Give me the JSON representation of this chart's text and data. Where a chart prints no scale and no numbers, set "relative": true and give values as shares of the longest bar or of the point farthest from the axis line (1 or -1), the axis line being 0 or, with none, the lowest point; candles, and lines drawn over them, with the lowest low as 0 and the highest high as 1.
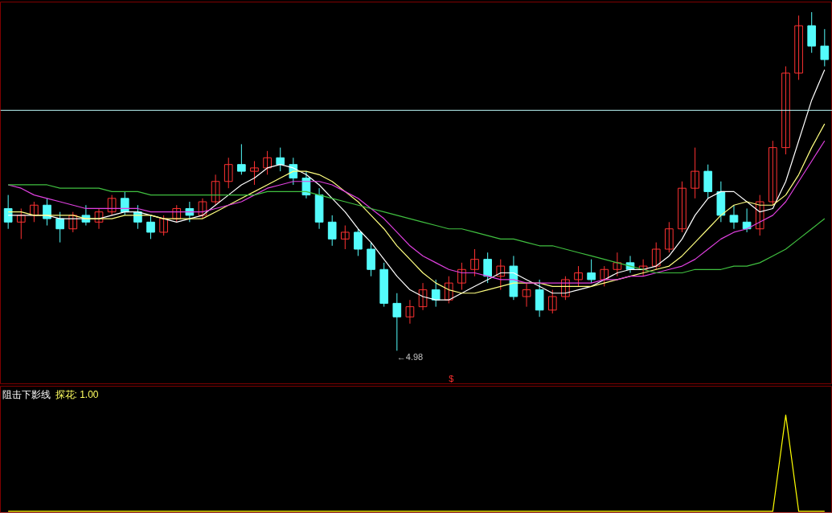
{
  "chart_data": [
    {
      "type": "candlestick",
      "relative": true,
      "categories": [
        null,
        null,
        null,
        null,
        null,
        null,
        null,
        null,
        null,
        null,
        null,
        null,
        null,
        null,
        null,
        null,
        null,
        null,
        null,
        null,
        null,
        null,
        null,
        null,
        null,
        null,
        null,
        null,
        null,
        null,
        null,
        null,
        null,
        null,
        null,
        null,
        null,
        null,
        null,
        null,
        null,
        null,
        null,
        null,
        null,
        null,
        null,
        null,
        null,
        null,
        null,
        null,
        null,
        null,
        null,
        null,
        null,
        null,
        null,
        null,
        null,
        null,
        null,
        null
      ],
      "ohlc": [
        [
          0.42,
          0.46,
          0.36,
          0.38
        ],
        [
          0.38,
          0.42,
          0.33,
          0.4
        ],
        [
          0.4,
          0.44,
          0.38,
          0.43
        ],
        [
          0.43,
          0.45,
          0.37,
          0.39
        ],
        [
          0.39,
          0.41,
          0.32,
          0.36
        ],
        [
          0.36,
          0.41,
          0.35,
          0.4
        ],
        [
          0.4,
          0.43,
          0.37,
          0.38
        ],
        [
          0.38,
          0.42,
          0.36,
          0.41
        ],
        [
          0.41,
          0.46,
          0.4,
          0.45
        ],
        [
          0.45,
          0.47,
          0.4,
          0.41
        ],
        [
          0.41,
          0.43,
          0.36,
          0.38
        ],
        [
          0.38,
          0.4,
          0.33,
          0.35
        ],
        [
          0.35,
          0.4,
          0.34,
          0.39
        ],
        [
          0.39,
          0.43,
          0.38,
          0.42
        ],
        [
          0.42,
          0.44,
          0.38,
          0.4
        ],
        [
          0.4,
          0.45,
          0.39,
          0.44
        ],
        [
          0.44,
          0.52,
          0.43,
          0.5
        ],
        [
          0.5,
          0.57,
          0.48,
          0.55
        ],
        [
          0.55,
          0.61,
          0.52,
          0.53
        ],
        [
          0.53,
          0.56,
          0.49,
          0.54
        ],
        [
          0.54,
          0.59,
          0.52,
          0.57
        ],
        [
          0.57,
          0.6,
          0.53,
          0.55
        ],
        [
          0.55,
          0.57,
          0.49,
          0.51
        ],
        [
          0.51,
          0.53,
          0.45,
          0.46
        ],
        [
          0.46,
          0.48,
          0.36,
          0.38
        ],
        [
          0.38,
          0.4,
          0.31,
          0.33
        ],
        [
          0.33,
          0.37,
          0.3,
          0.35
        ],
        [
          0.35,
          0.36,
          0.28,
          0.3
        ],
        [
          0.3,
          0.32,
          0.22,
          0.24
        ],
        [
          0.24,
          0.26,
          0.13,
          0.14
        ],
        [
          0.14,
          0.17,
          0.0,
          0.1
        ],
        [
          0.1,
          0.15,
          0.08,
          0.13
        ],
        [
          0.13,
          0.2,
          0.12,
          0.18
        ],
        [
          0.18,
          0.21,
          0.13,
          0.15
        ],
        [
          0.15,
          0.22,
          0.14,
          0.2
        ],
        [
          0.2,
          0.26,
          0.18,
          0.24
        ],
        [
          0.24,
          0.3,
          0.22,
          0.27
        ],
        [
          0.27,
          0.29,
          0.2,
          0.22
        ],
        [
          0.22,
          0.27,
          0.18,
          0.25
        ],
        [
          0.25,
          0.28,
          0.15,
          0.16
        ],
        [
          0.16,
          0.2,
          0.13,
          0.18
        ],
        [
          0.18,
          0.21,
          0.1,
          0.12
        ],
        [
          0.12,
          0.18,
          0.11,
          0.16
        ],
        [
          0.16,
          0.22,
          0.15,
          0.21
        ],
        [
          0.21,
          0.25,
          0.19,
          0.23
        ],
        [
          0.23,
          0.27,
          0.2,
          0.21
        ],
        [
          0.21,
          0.25,
          0.19,
          0.24
        ],
        [
          0.24,
          0.29,
          0.22,
          0.26
        ],
        [
          0.26,
          0.28,
          0.23,
          0.24
        ],
        [
          0.24,
          0.27,
          0.22,
          0.25
        ],
        [
          0.25,
          0.32,
          0.24,
          0.3
        ],
        [
          0.3,
          0.38,
          0.29,
          0.36
        ],
        [
          0.36,
          0.5,
          0.35,
          0.48
        ],
        [
          0.48,
          0.6,
          0.45,
          0.53
        ],
        [
          0.53,
          0.55,
          0.45,
          0.47
        ],
        [
          0.47,
          0.5,
          0.38,
          0.4
        ],
        [
          0.4,
          0.43,
          0.36,
          0.38
        ],
        [
          0.38,
          0.42,
          0.35,
          0.36
        ],
        [
          0.36,
          0.46,
          0.34,
          0.44
        ],
        [
          0.44,
          0.62,
          0.43,
          0.6
        ],
        [
          0.6,
          0.84,
          0.58,
          0.82
        ],
        [
          0.82,
          0.99,
          0.8,
          0.96
        ],
        [
          0.96,
          1.0,
          0.88,
          0.9
        ],
        [
          0.9,
          0.95,
          0.84,
          0.86
        ]
      ],
      "colors": [
        "#54fcfc",
        "#ff3232",
        "#ff3232",
        "#54fcfc",
        "#54fcfc",
        "#ff3232",
        "#54fcfc",
        "#ff3232",
        "#ff3232",
        "#54fcfc",
        "#54fcfc",
        "#54fcfc",
        "#ff3232",
        "#ff3232",
        "#54fcfc",
        "#ff3232",
        "#ff3232",
        "#ff3232",
        "#54fcfc",
        "#ff3232",
        "#ff3232",
        "#54fcfc",
        "#54fcfc",
        "#54fcfc",
        "#54fcfc",
        "#54fcfc",
        "#ff3232",
        "#54fcfc",
        "#54fcfc",
        "#54fcfc",
        "#54fcfc",
        "#ff3232",
        "#ff3232",
        "#54fcfc",
        "#ff3232",
        "#ff3232",
        "#ff3232",
        "#54fcfc",
        "#ff3232",
        "#54fcfc",
        "#ff3232",
        "#54fcfc",
        "#ff3232",
        "#ff3232",
        "#ff3232",
        "#54fcfc",
        "#ff3232",
        "#ff3232",
        "#54fcfc",
        "#ff3232",
        "#ff3232",
        "#ff3232",
        "#ff3232",
        "#ff3232",
        "#54fcfc",
        "#54fcfc",
        "#54fcfc",
        "#54fcfc",
        "#ff3232",
        "#ff3232",
        "#ff3232",
        "#ff3232",
        "#54fcfc",
        "#54fcfc"
      ],
      "series": [
        {
          "type": "line",
          "color": "#ffffff",
          "values": [
            0.4,
            0.4,
            0.4,
            0.4,
            0.39,
            0.39,
            0.39,
            0.39,
            0.4,
            0.41,
            0.41,
            0.4,
            0.39,
            0.38,
            0.39,
            0.4,
            0.43,
            0.46,
            0.49,
            0.51,
            0.54,
            0.55,
            0.54,
            0.52,
            0.49,
            0.45,
            0.41,
            0.36,
            0.32,
            0.27,
            0.22,
            0.18,
            0.16,
            0.15,
            0.15,
            0.17,
            0.19,
            0.21,
            0.23,
            0.23,
            0.21,
            0.19,
            0.17,
            0.17,
            0.18,
            0.19,
            0.21,
            0.23,
            0.24,
            0.24,
            0.25,
            0.28,
            0.33,
            0.4,
            0.45,
            0.47,
            0.47,
            0.44,
            0.41,
            0.42,
            0.5,
            0.62,
            0.74,
            0.83
          ]
        },
        {
          "type": "line",
          "color": "#ffff80",
          "values": [
            0.41,
            0.41,
            0.4,
            0.4,
            0.4,
            0.4,
            0.39,
            0.39,
            0.39,
            0.4,
            0.4,
            0.4,
            0.39,
            0.39,
            0.39,
            0.39,
            0.41,
            0.43,
            0.45,
            0.47,
            0.49,
            0.51,
            0.53,
            0.53,
            0.52,
            0.5,
            0.47,
            0.44,
            0.4,
            0.36,
            0.31,
            0.27,
            0.23,
            0.2,
            0.18,
            0.17,
            0.17,
            0.18,
            0.19,
            0.2,
            0.2,
            0.2,
            0.19,
            0.19,
            0.19,
            0.19,
            0.2,
            0.21,
            0.22,
            0.23,
            0.24,
            0.25,
            0.28,
            0.32,
            0.36,
            0.4,
            0.43,
            0.44,
            0.43,
            0.43,
            0.46,
            0.52,
            0.6,
            0.67
          ]
        },
        {
          "type": "line",
          "color": "#e040e0",
          "values": [
            0.49,
            0.48,
            0.46,
            0.45,
            0.44,
            0.43,
            0.42,
            0.42,
            0.42,
            0.42,
            0.42,
            0.41,
            0.41,
            0.41,
            0.41,
            0.41,
            0.42,
            0.43,
            0.44,
            0.46,
            0.48,
            0.49,
            0.5,
            0.5,
            0.5,
            0.49,
            0.47,
            0.45,
            0.42,
            0.39,
            0.35,
            0.31,
            0.28,
            0.26,
            0.24,
            0.23,
            0.23,
            0.22,
            0.21,
            0.21,
            0.2,
            0.2,
            0.2,
            0.2,
            0.2,
            0.2,
            0.21,
            0.21,
            0.22,
            0.22,
            0.23,
            0.24,
            0.25,
            0.27,
            0.3,
            0.33,
            0.35,
            0.36,
            0.38,
            0.4,
            0.44,
            0.5,
            0.56,
            0.62
          ]
        },
        {
          "type": "line",
          "color": "#40c040",
          "values": [
            0.49,
            0.49,
            0.49,
            0.49,
            0.48,
            0.48,
            0.48,
            0.48,
            0.47,
            0.47,
            0.47,
            0.46,
            0.46,
            0.46,
            0.46,
            0.46,
            0.46,
            0.46,
            0.46,
            0.46,
            0.47,
            0.47,
            0.47,
            0.47,
            0.46,
            0.45,
            0.44,
            0.43,
            0.42,
            0.41,
            0.4,
            0.39,
            0.38,
            0.37,
            0.36,
            0.36,
            0.35,
            0.34,
            0.33,
            0.33,
            0.32,
            0.31,
            0.31,
            0.3,
            0.29,
            0.28,
            0.27,
            0.26,
            0.25,
            0.24,
            0.23,
            0.23,
            0.23,
            0.24,
            0.24,
            0.24,
            0.25,
            0.25,
            0.26,
            0.28,
            0.3,
            0.33,
            0.36,
            0.39
          ]
        }
      ],
      "ref_lines": [
        {
          "axis": "y",
          "value": 0.71,
          "color": "#c0ffff"
        }
      ],
      "annotations": [
        "←4.98",
        "$"
      ]
    },
    {
      "type": "line",
      "relative": true,
      "title": "阻击下影线",
      "categories": [
        null,
        null,
        null,
        null,
        null,
        null,
        null,
        null,
        null,
        null,
        null,
        null,
        null,
        null,
        null,
        null,
        null,
        null,
        null,
        null,
        null,
        null,
        null,
        null,
        null,
        null,
        null,
        null,
        null,
        null,
        null,
        null,
        null,
        null,
        null,
        null,
        null,
        null,
        null,
        null,
        null,
        null,
        null,
        null,
        null,
        null,
        null,
        null,
        null,
        null,
        null,
        null,
        null,
        null,
        null,
        null,
        null,
        null,
        null,
        null,
        null,
        null,
        null,
        null
      ],
      "series": [
        {
          "color": "#ffff00",
          "values": [
            0,
            0,
            0,
            0,
            0,
            0,
            0,
            0,
            0,
            0,
            0,
            0,
            0,
            0,
            0,
            0,
            0,
            0,
            0,
            0,
            0,
            0,
            0,
            0,
            0,
            0,
            0,
            0,
            0,
            0,
            0,
            0,
            0,
            0,
            0,
            0,
            0,
            0,
            0,
            0,
            0,
            0,
            0,
            0,
            0,
            0,
            0,
            0,
            0,
            0,
            0,
            0,
            0,
            0,
            0,
            0,
            0,
            0,
            0,
            0,
            1,
            0,
            0,
            0
          ]
        }
      ],
      "annotations": [
        "探花: 1.00"
      ]
    }
  ]
}
